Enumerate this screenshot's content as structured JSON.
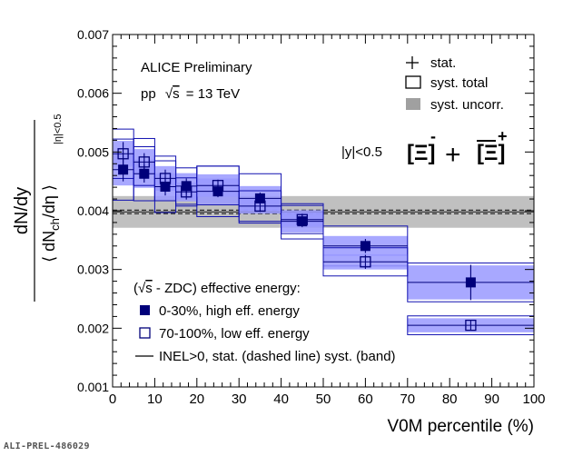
{
  "chart_data": {
    "type": "scatter",
    "title_line1": "ALICE Preliminary",
    "title_line2_prefix": "pp",
    "title_line2_sqrt": "s",
    "title_line2_suffix": "= 13 TeV",
    "rapidity_label": "|y|<0.5",
    "particle_label": {
      "p1": "[Ξ]",
      "sup1": "-",
      "plus": "+",
      "p2": "[Ξ]",
      "sup2": "+"
    },
    "xlabel": "V0M percentile (%)",
    "ylabel": {
      "num": "dN/dy",
      "den_open": "⟨ dN",
      "den_sub": "ch",
      "den_close": "/dη ⟩",
      "den_subscript": "|η|<0.5"
    },
    "xlim": [
      0,
      100
    ],
    "ylim": [
      0.001,
      0.007
    ],
    "x_ticks": [
      0,
      10,
      20,
      30,
      40,
      50,
      60,
      70,
      80,
      90,
      100
    ],
    "x_tick_labels": [
      "0",
      "10",
      "20",
      "30",
      "40",
      "50",
      "60",
      "70",
      "80",
      "90",
      "100"
    ],
    "y_ticks": [
      0.001,
      0.002,
      0.003,
      0.004,
      0.005,
      0.006,
      0.007
    ],
    "y_tick_labels": [
      "0.001",
      "0.002",
      "0.003",
      "0.004",
      "0.005",
      "0.006",
      "0.007"
    ],
    "legend_top": [
      {
        "symbol": "cross",
        "label": "stat."
      },
      {
        "symbol": "open-box",
        "label": "syst. total"
      },
      {
        "symbol": "grey-box",
        "label": "syst. uncorr."
      }
    ],
    "legend_bottom": {
      "header_prefix": "(",
      "header_sqrt": "s",
      "header_suffix": " - ZDC) effective energy:",
      "items": [
        {
          "symbol": "filled-square",
          "label": "0-30%, high eff. energy"
        },
        {
          "symbol": "open-square",
          "label": "70-100%, low eff. energy"
        },
        {
          "symbol": "line",
          "label": "INEL>0, stat. (dashed line) syst. (band)"
        }
      ]
    },
    "inel_reference": {
      "value": 0.00398,
      "stat": 3e-05,
      "syst": 0.00027
    },
    "series": [
      {
        "name": "0-30%, high eff. energy",
        "marker": "filled-square",
        "points": [
          {
            "xmin": 0,
            "xmax": 5,
            "y": 0.0047,
            "stat": 0.0002,
            "syst_total": 0.00052,
            "syst_uncorr": 0.00027
          },
          {
            "xmin": 5,
            "xmax": 10,
            "y": 0.00463,
            "stat": 0.00015,
            "syst_total": 0.00046,
            "syst_uncorr": 0.00024
          },
          {
            "xmin": 10,
            "xmax": 15,
            "y": 0.00441,
            "stat": 0.00015,
            "syst_total": 0.00044,
            "syst_uncorr": 0.00023
          },
          {
            "xmin": 15,
            "xmax": 20,
            "y": 0.00442,
            "stat": 0.00013,
            "syst_total": 0.00031,
            "syst_uncorr": 0.00022
          },
          {
            "xmin": 20,
            "xmax": 30,
            "y": 0.00433,
            "stat": 0.0001,
            "syst_total": 0.00043,
            "syst_uncorr": 0.00022
          },
          {
            "xmin": 30,
            "xmax": 40,
            "y": 0.00421,
            "stat": 0.0001,
            "syst_total": 0.00042,
            "syst_uncorr": 0.00021
          },
          {
            "xmin": 40,
            "xmax": 50,
            "y": 0.00382,
            "stat": 0.0001,
            "syst_total": 0.0003,
            "syst_uncorr": 0.00019
          },
          {
            "xmin": 50,
            "xmax": 70,
            "y": 0.0034,
            "stat": 0.00012,
            "syst_total": 0.00034,
            "syst_uncorr": 0.00017
          },
          {
            "xmin": 70,
            "xmax": 100,
            "y": 0.00278,
            "stat": 0.0003,
            "syst_total": 0.00033,
            "syst_uncorr": 0.00029
          }
        ]
      },
      {
        "name": "70-100%, low eff. energy",
        "marker": "open-square",
        "points": [
          {
            "xmin": 0,
            "xmax": 5,
            "y": 0.00497,
            "stat": 0.0002,
            "syst_total": 0.00042,
            "syst_uncorr": 0.00022
          },
          {
            "xmin": 5,
            "xmax": 10,
            "y": 0.00483,
            "stat": 0.00015,
            "syst_total": 0.0004,
            "syst_uncorr": 0.00022
          },
          {
            "xmin": 10,
            "xmax": 15,
            "y": 0.00455,
            "stat": 0.00015,
            "syst_total": 0.00038,
            "syst_uncorr": 0.00021
          },
          {
            "xmin": 15,
            "xmax": 20,
            "y": 0.00432,
            "stat": 0.00013,
            "syst_total": 0.00024,
            "syst_uncorr": 0.00016
          },
          {
            "xmin": 20,
            "xmax": 30,
            "y": 0.00443,
            "stat": 0.0001,
            "syst_total": 0.00033,
            "syst_uncorr": 0.00019
          },
          {
            "xmin": 30,
            "xmax": 40,
            "y": 0.00408,
            "stat": 0.0001,
            "syst_total": 0.00026,
            "syst_uncorr": 0.00013
          },
          {
            "xmin": 40,
            "xmax": 50,
            "y": 0.00385,
            "stat": 0.0001,
            "syst_total": 0.00024,
            "syst_uncorr": 0.00012
          },
          {
            "xmin": 50,
            "xmax": 70,
            "y": 0.00313,
            "stat": 0.00012,
            "syst_total": 0.00024,
            "syst_uncorr": 0.00013
          },
          {
            "xmin": 70,
            "xmax": 100,
            "y": 0.00205,
            "stat": 8e-05,
            "syst_total": 0.00016,
            "syst_uncorr": 0.00012
          }
        ]
      }
    ],
    "colors": {
      "fill": "#9999ff",
      "edge": "#1010b0",
      "marker": "#00007a",
      "band": "#c0c0c0",
      "inel_line": "#2a2a2a"
    }
  },
  "footer": {
    "figure_id": "ALI-PREL-486029"
  }
}
